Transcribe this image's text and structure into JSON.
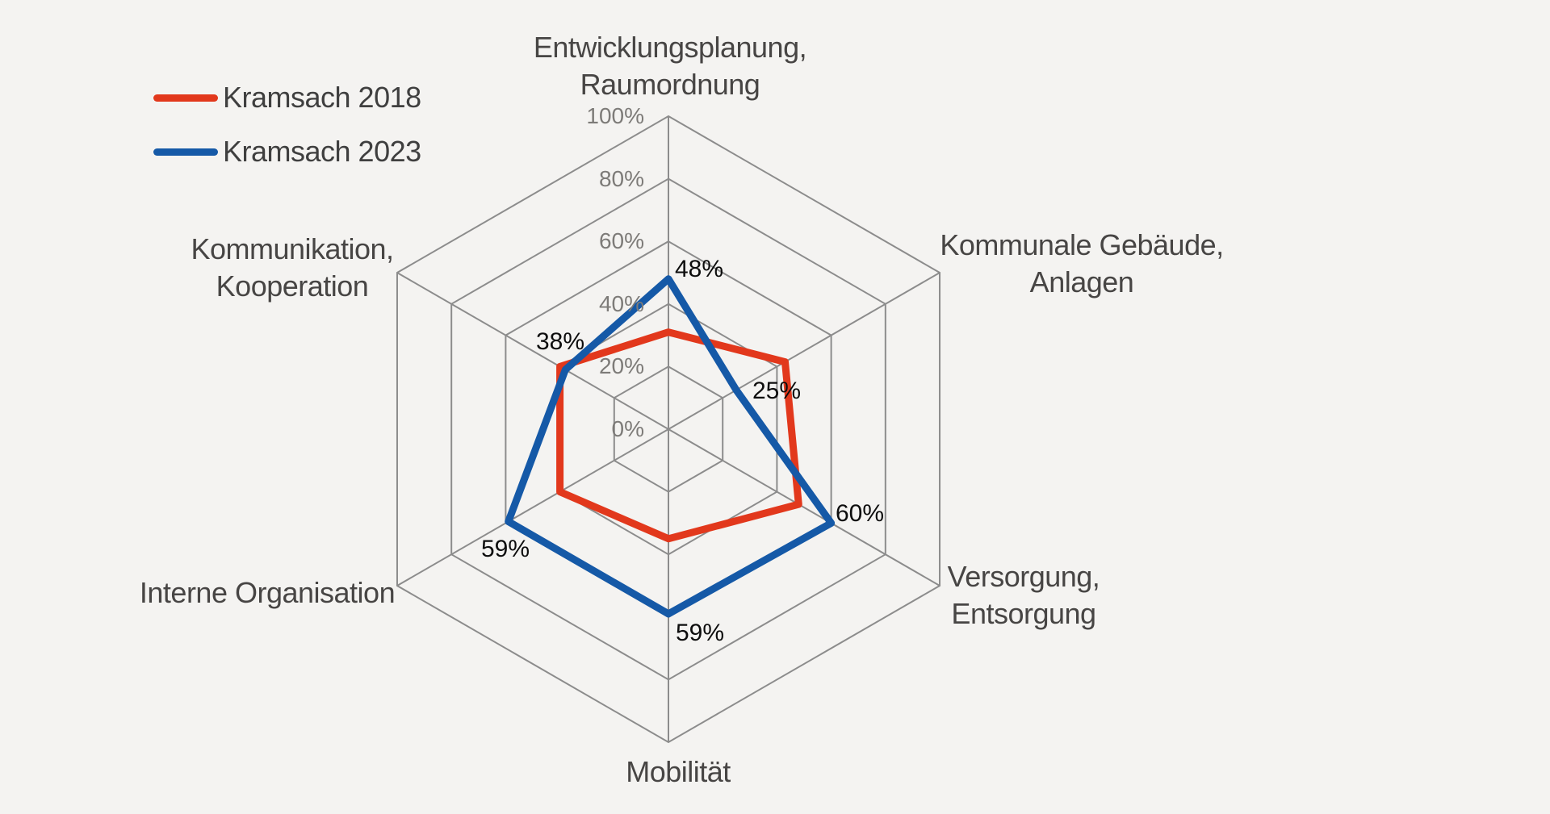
{
  "background_color": "#F4F3F1",
  "legend": {
    "items": [
      {
        "label": "Kramsach 2018",
        "color": "#E2381C"
      },
      {
        "label": "Kramsach 2023",
        "color": "#1559A7"
      }
    ]
  },
  "chart_data": {
    "type": "radar",
    "axes": [
      {
        "label_lines": [
          "Entwicklungsplanung,",
          "Raumordnung"
        ]
      },
      {
        "label_lines": [
          "Kommunale Gebäude,",
          "Anlagen"
        ]
      },
      {
        "label_lines": [
          "Versorgung,",
          "Entsorgung"
        ]
      },
      {
        "label_lines": [
          "Mobilität"
        ]
      },
      {
        "label_lines": [
          "Interne Organisation"
        ]
      },
      {
        "label_lines": [
          "Kommunikation,",
          "Kooperation"
        ]
      }
    ],
    "ticks": [
      "0%",
      "20%",
      "40%",
      "60%",
      "80%",
      "100%"
    ],
    "scale": {
      "min": 0,
      "max": 100,
      "step": 20,
      "unit": "%"
    },
    "series": [
      {
        "name": "Kramsach 2018",
        "color": "#E2381C",
        "values": [
          31,
          43,
          48,
          35,
          40,
          40
        ],
        "labels_shown": false,
        "data_labels": []
      },
      {
        "name": "Kramsach 2023",
        "color": "#1559A7",
        "values": [
          48,
          25,
          60,
          59,
          59,
          38
        ],
        "labels_shown": true,
        "data_labels": [
          "48%",
          "25%",
          "60%",
          "59%",
          "59%",
          "38%"
        ]
      }
    ],
    "grid": {
      "shape": "hexagon",
      "rings": 5,
      "color": "#8C8C8C"
    },
    "colors": {
      "tick_text": "#7D7B78",
      "axis_label_text": "#474544",
      "data_label_text": "#0D0D0D",
      "legend_text": "#3F3F3F"
    },
    "legend_position": "top-left"
  }
}
